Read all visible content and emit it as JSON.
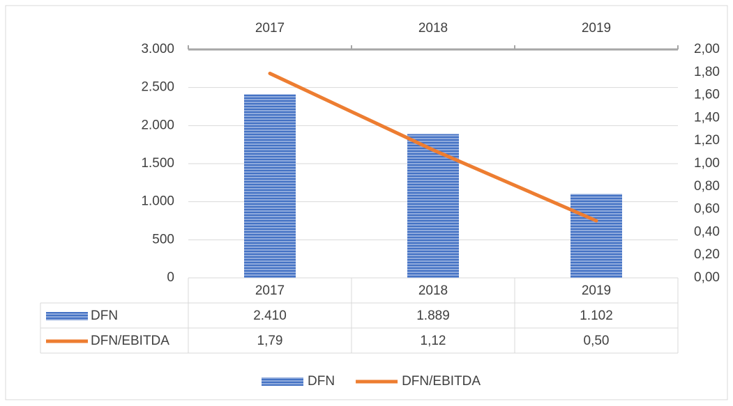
{
  "chart_data": {
    "type": "bar",
    "categories": [
      "2017",
      "2018",
      "2019"
    ],
    "series": [
      {
        "name": "DFN",
        "type": "bar",
        "color": "#4472c4",
        "values": [
          2410,
          1889,
          1102
        ],
        "value_labels": [
          "2.410",
          "1.889",
          "1.102"
        ]
      },
      {
        "name": "DFN/EBITDA",
        "type": "line",
        "axis": "y2",
        "color": "#ed7d31",
        "values": [
          1.79,
          1.12,
          0.5
        ],
        "value_labels": [
          "1,79",
          "1,12",
          "0,50"
        ]
      }
    ],
    "ylim": [
      0,
      3000
    ],
    "yticks": [
      0,
      500,
      {
        "value": 1000,
        "label": "1.000"
      },
      {
        "value": 1500,
        "label": "1.500"
      },
      {
        "value": 2000,
        "label": "2.000"
      },
      {
        "value": 2500,
        "label": "2.500"
      },
      {
        "value": 3000,
        "label": "3.000"
      }
    ],
    "y2lim": [
      0,
      2
    ],
    "y2ticks": [
      {
        "value": 0,
        "label": "0,00"
      },
      {
        "value": 0.2,
        "label": "0,20"
      },
      {
        "value": 0.4,
        "label": "0,40"
      },
      {
        "value": 0.6,
        "label": "0,60"
      },
      {
        "value": 0.8,
        "label": "0,80"
      },
      {
        "value": 1.0,
        "label": "1,00"
      },
      {
        "value": 1.2,
        "label": "1,20"
      },
      {
        "value": 1.4,
        "label": "1,40"
      },
      {
        "value": 1.6,
        "label": "1,60"
      },
      {
        "value": 1.8,
        "label": "1,80"
      },
      {
        "value": 2.0,
        "label": "2,00"
      }
    ],
    "grid": true,
    "legend": "bottom"
  }
}
